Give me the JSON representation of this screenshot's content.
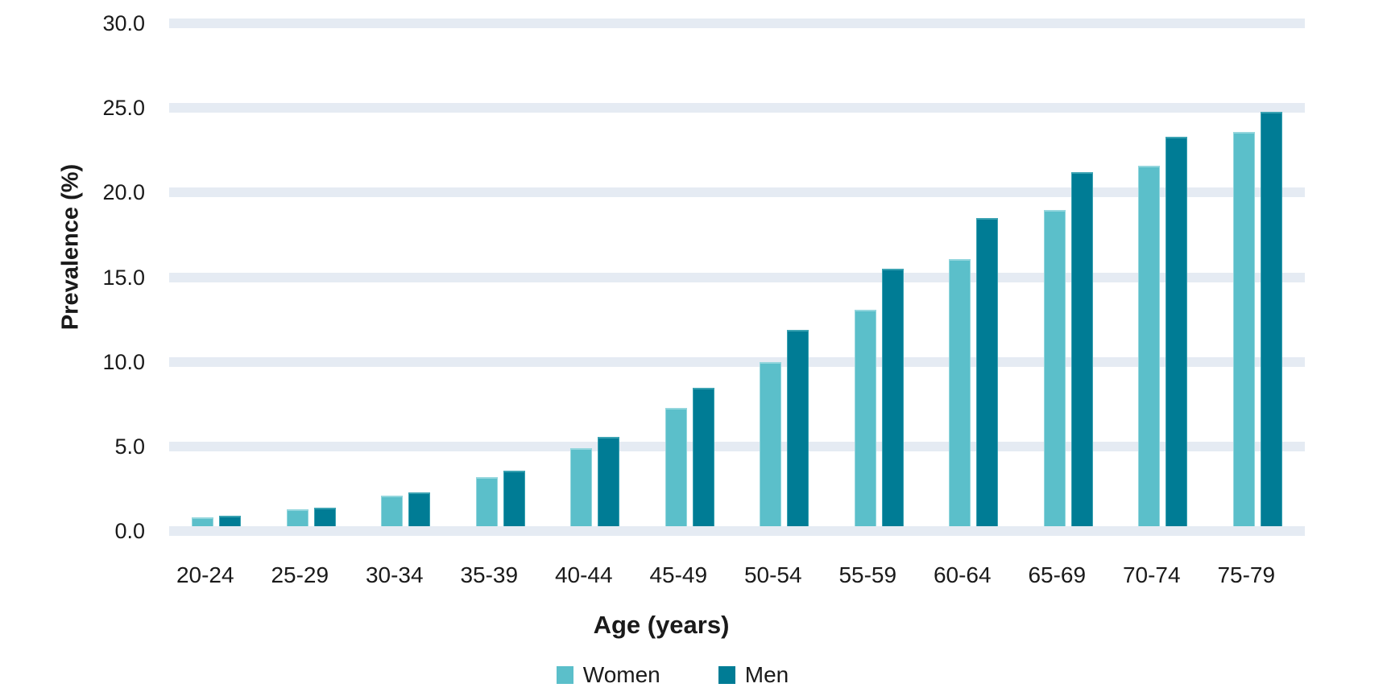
{
  "chart_data": {
    "type": "bar",
    "title": "",
    "xlabel": "Age (years)",
    "ylabel": "Prevalence (%)",
    "categories": [
      "20-24",
      "25-29",
      "30-34",
      "35-39",
      "40-44",
      "45-49",
      "50-54",
      "55-59",
      "60-64",
      "65-69",
      "70-74",
      "75-79"
    ],
    "series": [
      {
        "name": "Women",
        "color": "#5bbfca",
        "edge_color": "#93d6dd",
        "values": [
          0.5,
          1.0,
          1.8,
          2.9,
          4.6,
          7.0,
          9.7,
          12.8,
          15.8,
          18.7,
          21.3,
          23.3
        ]
      },
      {
        "name": "Men",
        "color": "#007c95",
        "edge_color": "#3aa2b2",
        "values": [
          0.6,
          1.1,
          2.0,
          3.3,
          5.3,
          8.2,
          11.6,
          15.2,
          18.2,
          20.9,
          23.0,
          24.5
        ]
      }
    ],
    "ylim": [
      0,
      30
    ],
    "ytick_step": 5,
    "ytick_labels": [
      "0.0",
      "5.0",
      "10.0",
      "15.0",
      "20.0",
      "25.0",
      "30.0"
    ],
    "grid": "horizontal-bands",
    "gridband_color": "#e5ebf3",
    "text_color": "#1a1a1a",
    "legend_position": "bottom"
  }
}
